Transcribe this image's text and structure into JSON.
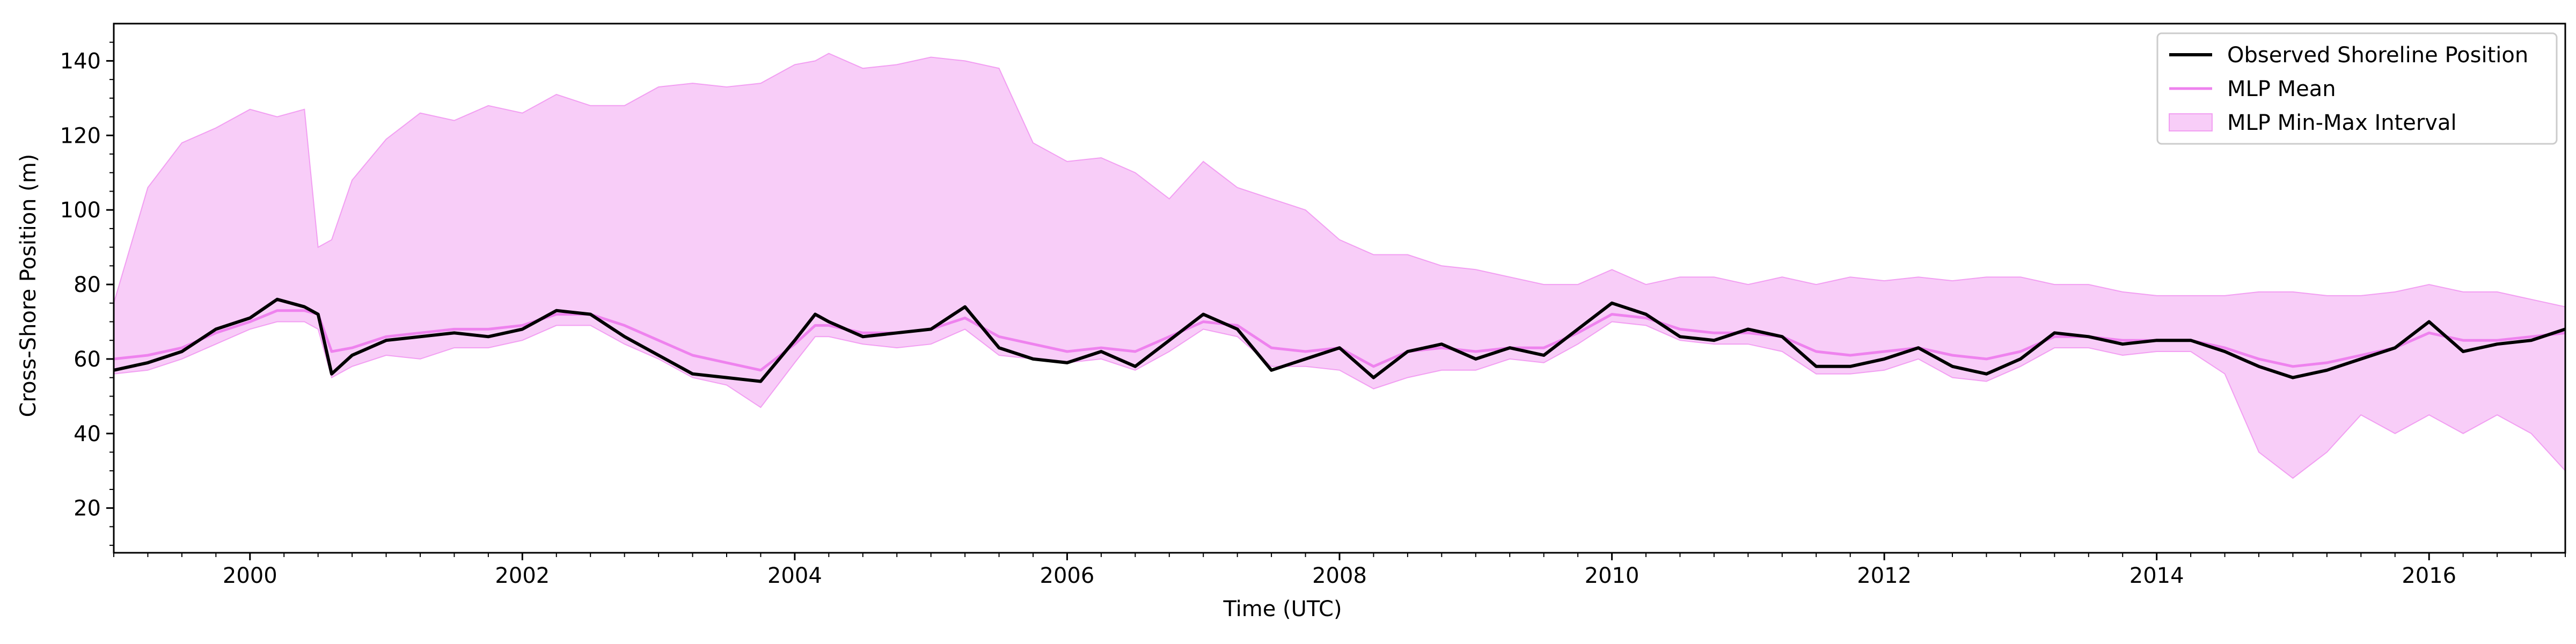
{
  "chart_data": {
    "type": "line",
    "title": "",
    "xlabel": "Time (UTC)",
    "ylabel": "Cross-Shore Position (m)",
    "xlim": [
      1999.0,
      2017.0
    ],
    "ylim": [
      8,
      150
    ],
    "grid": false,
    "legend_position": "top-right",
    "x_ticks": [
      2000,
      2002,
      2004,
      2006,
      2008,
      2010,
      2012,
      2014,
      2016
    ],
    "x_tick_labels": [
      "2000",
      "2002",
      "2004",
      "2006",
      "2008",
      "2010",
      "2012",
      "2014",
      "2016"
    ],
    "y_ticks": [
      20,
      40,
      60,
      80,
      100,
      120,
      140
    ],
    "y_tick_labels": [
      "20",
      "40",
      "60",
      "80",
      "100",
      "120",
      "140"
    ],
    "legend": [
      "Observed Shoreline Position",
      "MLP Mean",
      "MLP Min-Max Interval"
    ],
    "colors": {
      "observed": "#000000",
      "mean": "#ee82ee",
      "interval": "#ee82ee",
      "interval_alpha": 0.4
    },
    "series": [
      {
        "name": "Observed Shoreline Position",
        "x": [
          1999.0,
          1999.25,
          1999.5,
          1999.75,
          2000.0,
          2000.2,
          2000.4,
          2000.5,
          2000.6,
          2000.75,
          2001.0,
          2001.25,
          2001.5,
          2001.75,
          2002.0,
          2002.25,
          2002.5,
          2002.75,
          2003.0,
          2003.25,
          2003.5,
          2003.75,
          2004.0,
          2004.15,
          2004.25,
          2004.5,
          2004.75,
          2005.0,
          2005.25,
          2005.5,
          2005.75,
          2006.0,
          2006.25,
          2006.5,
          2006.75,
          2007.0,
          2007.25,
          2007.5,
          2007.75,
          2008.0,
          2008.25,
          2008.5,
          2008.75,
          2009.0,
          2009.25,
          2009.5,
          2009.75,
          2010.0,
          2010.25,
          2010.5,
          2010.75,
          2011.0,
          2011.25,
          2011.5,
          2011.75,
          2012.0,
          2012.25,
          2012.5,
          2012.75,
          2013.0,
          2013.25,
          2013.5,
          2013.75,
          2014.0,
          2014.25,
          2014.5,
          2014.75,
          2015.0,
          2015.25,
          2015.5,
          2015.75,
          2016.0,
          2016.25,
          2016.5,
          2016.75,
          2017.0
        ],
        "y": [
          57,
          59,
          62,
          68,
          71,
          76,
          74,
          72,
          56,
          61,
          65,
          66,
          67,
          66,
          68,
          73,
          72,
          66,
          61,
          56,
          55,
          54,
          65,
          72,
          70,
          66,
          67,
          68,
          74,
          63,
          60,
          59,
          62,
          58,
          65,
          72,
          68,
          57,
          60,
          63,
          55,
          62,
          64,
          60,
          63,
          61,
          68,
          75,
          72,
          66,
          65,
          68,
          66,
          58,
          58,
          60,
          63,
          58,
          56,
          60,
          67,
          66,
          64,
          65,
          65,
          62,
          58,
          55,
          57,
          60,
          63,
          70,
          62,
          64,
          65,
          68
        ]
      },
      {
        "name": "MLP Mean",
        "x": [
          1999.0,
          1999.25,
          1999.5,
          1999.75,
          2000.0,
          2000.2,
          2000.4,
          2000.5,
          2000.6,
          2000.75,
          2001.0,
          2001.25,
          2001.5,
          2001.75,
          2002.0,
          2002.25,
          2002.5,
          2002.75,
          2003.0,
          2003.25,
          2003.5,
          2003.75,
          2004.0,
          2004.15,
          2004.25,
          2004.5,
          2004.75,
          2005.0,
          2005.25,
          2005.5,
          2005.75,
          2006.0,
          2006.25,
          2006.5,
          2006.75,
          2007.0,
          2007.25,
          2007.5,
          2007.75,
          2008.0,
          2008.25,
          2008.5,
          2008.75,
          2009.0,
          2009.25,
          2009.5,
          2009.75,
          2010.0,
          2010.25,
          2010.5,
          2010.75,
          2011.0,
          2011.25,
          2011.5,
          2011.75,
          2012.0,
          2012.25,
          2012.5,
          2012.75,
          2013.0,
          2013.25,
          2013.5,
          2013.75,
          2014.0,
          2014.25,
          2014.5,
          2014.75,
          2015.0,
          2015.25,
          2015.5,
          2015.75,
          2016.0,
          2016.25,
          2016.5,
          2016.75,
          2017.0
        ],
        "y": [
          60,
          61,
          63,
          67,
          70,
          73,
          73,
          72,
          62,
          63,
          66,
          67,
          68,
          68,
          69,
          72,
          72,
          69,
          65,
          61,
          59,
          57,
          64,
          69,
          69,
          67,
          67,
          68,
          71,
          66,
          64,
          62,
          63,
          62,
          66,
          70,
          69,
          63,
          62,
          63,
          58,
          62,
          63,
          62,
          63,
          63,
          67,
          72,
          71,
          68,
          67,
          67,
          66,
          62,
          61,
          62,
          63,
          61,
          60,
          62,
          66,
          66,
          65,
          65,
          65,
          63,
          60,
          58,
          59,
          61,
          63,
          67,
          65,
          65,
          66,
          67
        ]
      }
    ],
    "interval": {
      "name": "MLP Min-Max Interval",
      "x": [
        1999.0,
        1999.25,
        1999.5,
        1999.75,
        2000.0,
        2000.2,
        2000.4,
        2000.5,
        2000.6,
        2000.75,
        2001.0,
        2001.25,
        2001.5,
        2001.75,
        2002.0,
        2002.25,
        2002.5,
        2002.75,
        2003.0,
        2003.25,
        2003.5,
        2003.75,
        2004.0,
        2004.15,
        2004.25,
        2004.5,
        2004.75,
        2005.0,
        2005.25,
        2005.5,
        2005.75,
        2006.0,
        2006.25,
        2006.5,
        2006.75,
        2007.0,
        2007.25,
        2007.5,
        2007.75,
        2008.0,
        2008.25,
        2008.5,
        2008.75,
        2009.0,
        2009.25,
        2009.5,
        2009.75,
        2010.0,
        2010.25,
        2010.5,
        2010.75,
        2011.0,
        2011.25,
        2011.5,
        2011.75,
        2012.0,
        2012.25,
        2012.5,
        2012.75,
        2013.0,
        2013.25,
        2013.5,
        2013.75,
        2014.0,
        2014.25,
        2014.5,
        2014.75,
        2015.0,
        2015.25,
        2015.5,
        2015.75,
        2016.0,
        2016.25,
        2016.5,
        2016.75,
        2017.0
      ],
      "lower": [
        56,
        57,
        60,
        64,
        68,
        70,
        70,
        68,
        55,
        58,
        61,
        60,
        63,
        63,
        65,
        69,
        69,
        64,
        60,
        55,
        53,
        47,
        59,
        66,
        66,
        64,
        63,
        64,
        68,
        61,
        60,
        59,
        60,
        57,
        62,
        68,
        66,
        58,
        58,
        57,
        52,
        55,
        57,
        57,
        60,
        59,
        64,
        70,
        69,
        65,
        64,
        64,
        62,
        56,
        56,
        57,
        60,
        55,
        54,
        58,
        63,
        63,
        61,
        62,
        62,
        56,
        35,
        28,
        35,
        45,
        40,
        45,
        40,
        45,
        40,
        30
      ],
      "upper": [
        75,
        106,
        118,
        122,
        127,
        125,
        127,
        90,
        92,
        108,
        119,
        126,
        124,
        128,
        126,
        131,
        128,
        128,
        133,
        134,
        133,
        134,
        139,
        140,
        142,
        138,
        139,
        141,
        140,
        138,
        118,
        113,
        114,
        110,
        103,
        113,
        106,
        103,
        100,
        92,
        88,
        88,
        85,
        84,
        82,
        80,
        80,
        84,
        80,
        82,
        82,
        80,
        82,
        80,
        82,
        81,
        82,
        81,
        82,
        82,
        80,
        80,
        78,
        77,
        77,
        77,
        78,
        78,
        77,
        77,
        78,
        80,
        78,
        78,
        76,
        74
      ]
    }
  }
}
